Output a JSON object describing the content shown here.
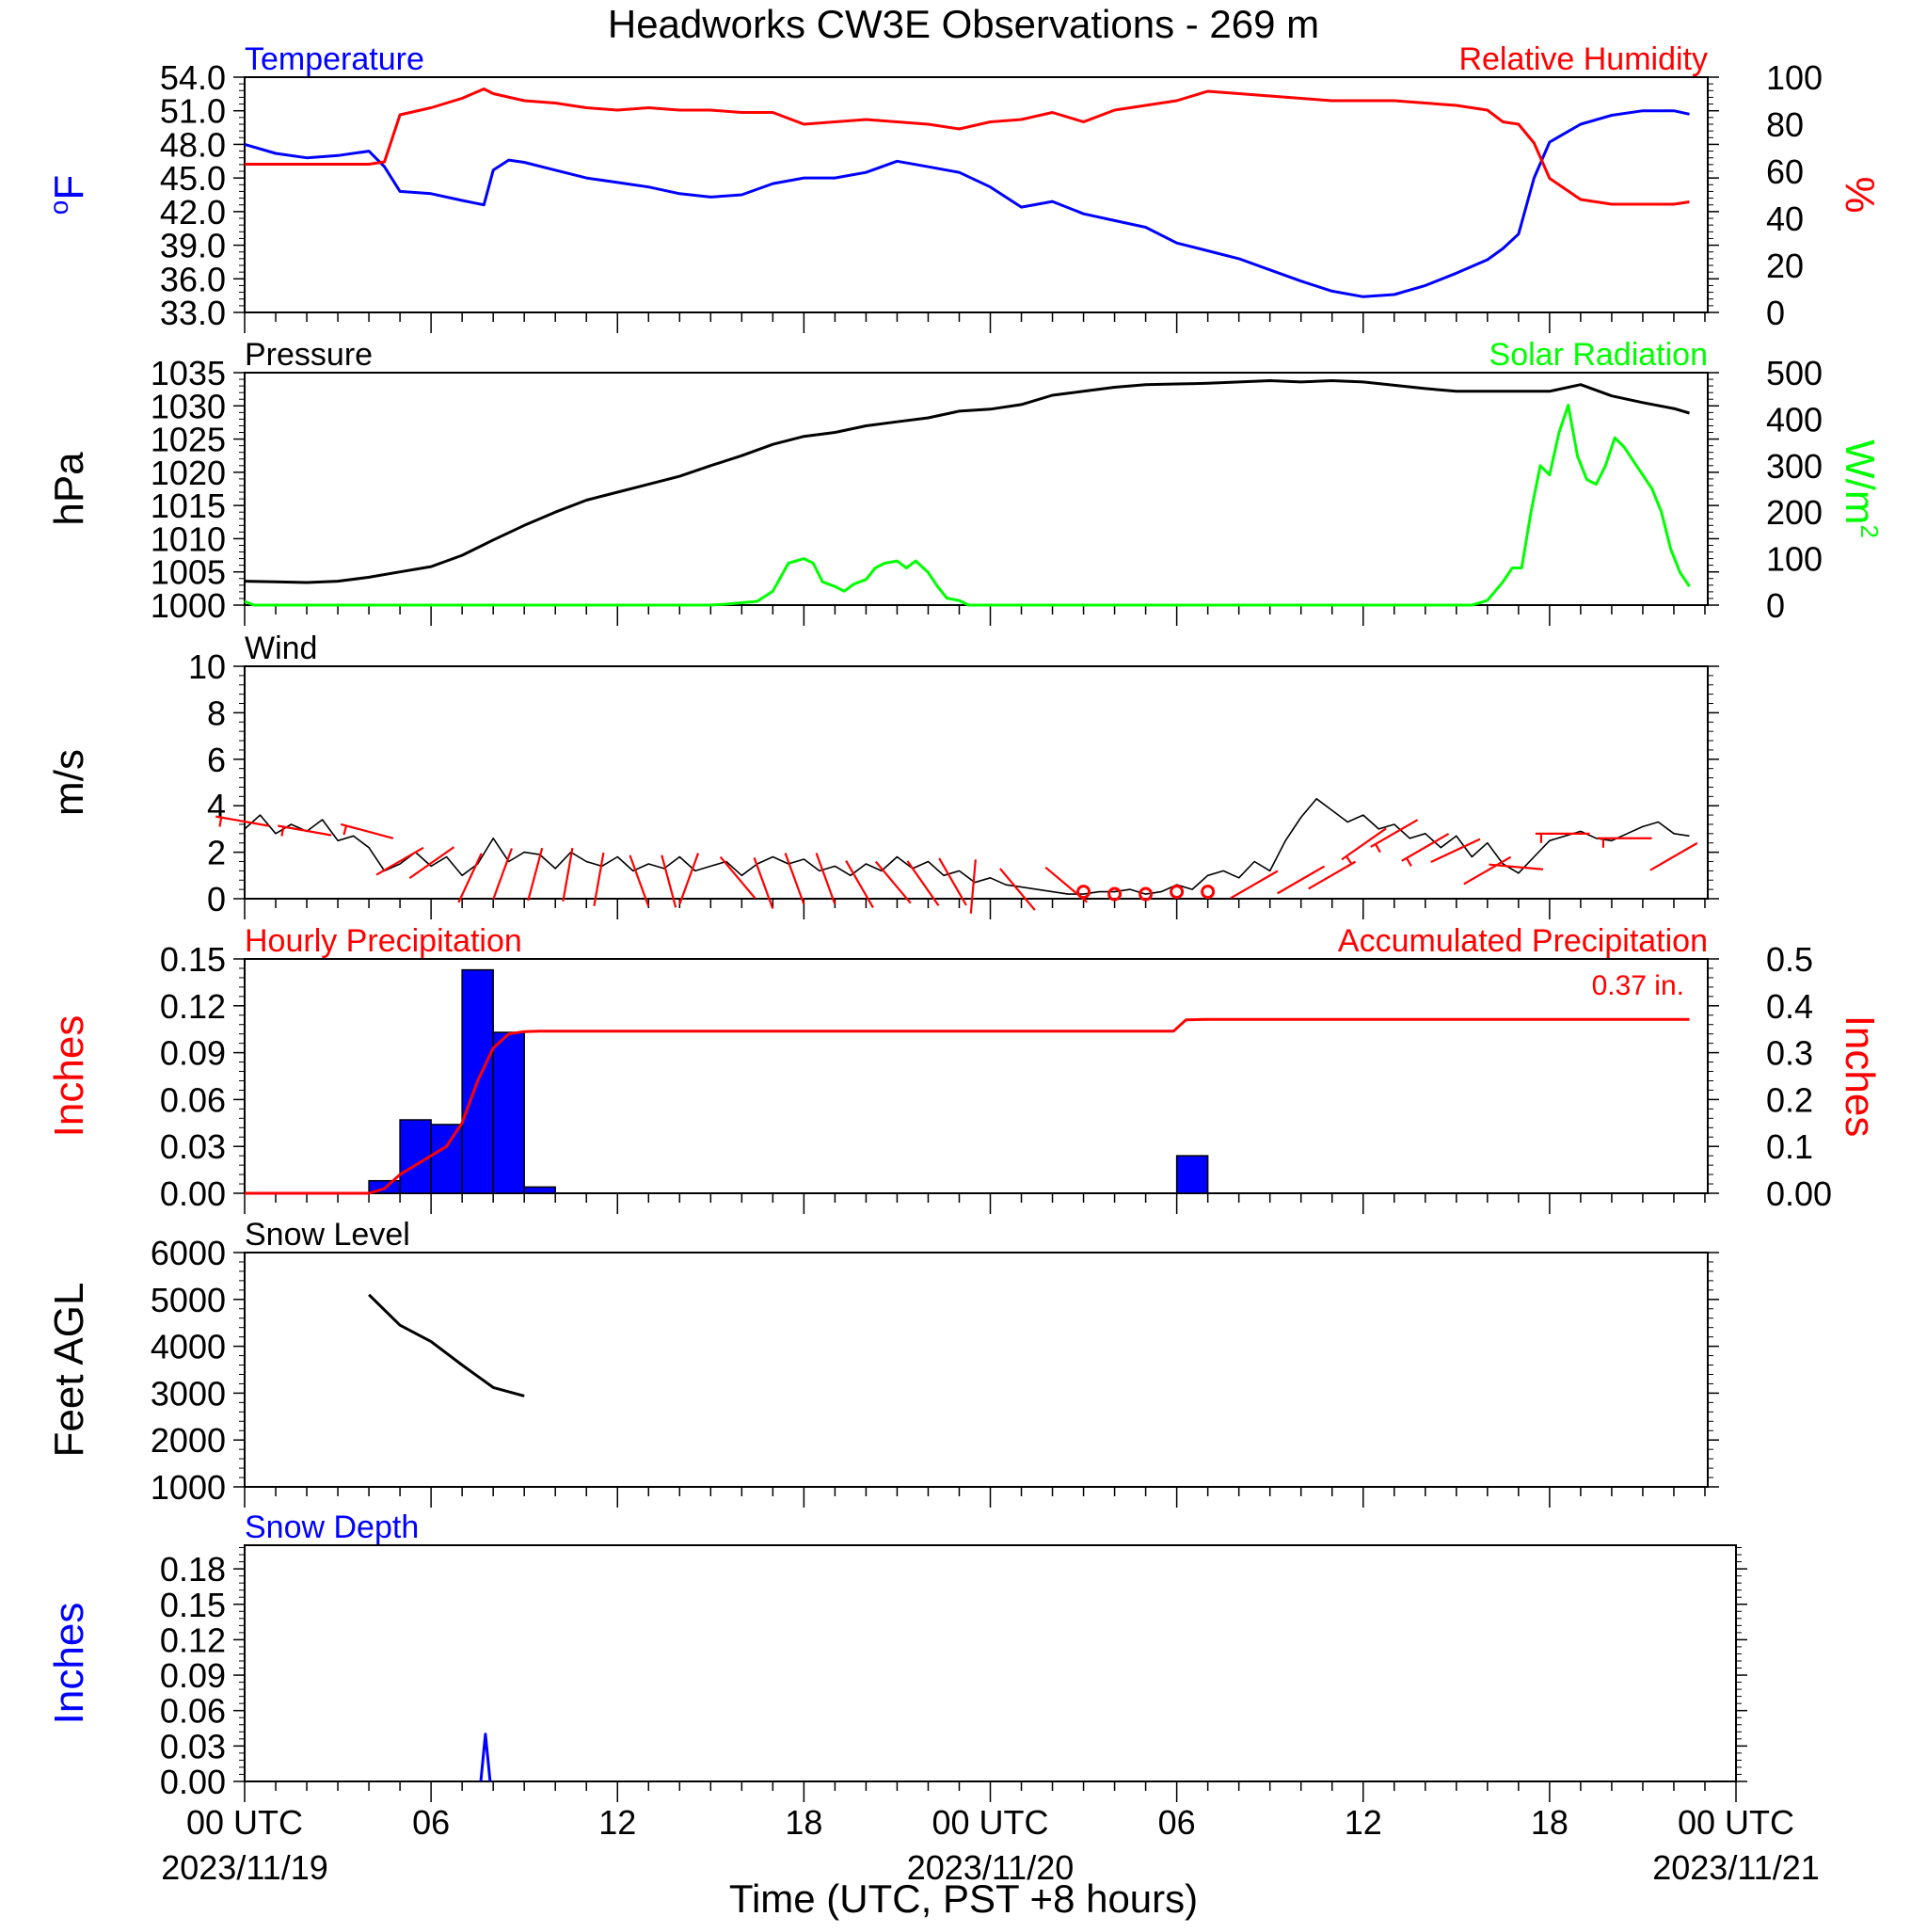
{
  "title": "Headworks CW3E Observations - 269 m",
  "x_axis": {
    "label": "Time (UTC, PST +8 hours)",
    "range_hours": [
      0,
      48
    ],
    "tick_labels": [
      {
        "hour": 0,
        "label": "00 UTC",
        "date": "2023/11/19"
      },
      {
        "hour": 6,
        "label": "06",
        "date": ""
      },
      {
        "hour": 12,
        "label": "12",
        "date": ""
      },
      {
        "hour": 18,
        "label": "18",
        "date": ""
      },
      {
        "hour": 24,
        "label": "00 UTC",
        "date": "2023/11/20"
      },
      {
        "hour": 30,
        "label": "06",
        "date": ""
      },
      {
        "hour": 36,
        "label": "12",
        "date": ""
      },
      {
        "hour": 42,
        "label": "18",
        "date": ""
      },
      {
        "hour": 48,
        "label": "00 UTC",
        "date": "2023/11/21"
      }
    ]
  },
  "colors": {
    "blue": "#0000ff",
    "red": "#ff0000",
    "green": "#00ff00",
    "black": "#000000"
  },
  "chart_data": [
    {
      "type": "line",
      "panel": "temperature-humidity",
      "left_title": "Temperature",
      "right_title": "Relative Humidity",
      "ylabel": "°F",
      "ylabel_right": "%",
      "ylim": [
        33,
        54
      ],
      "yticks": [
        "33.0",
        "36.0",
        "39.0",
        "42.0",
        "45.0",
        "48.0",
        "51.0",
        "54.0"
      ],
      "ylim_right": [
        0,
        100
      ],
      "yticks_right": [
        "0",
        "20",
        "40",
        "60",
        "80",
        "100"
      ],
      "series": [
        {
          "name": "Temperature",
          "color": "#0000ff",
          "axis": "left",
          "x": [
            0,
            1,
            2,
            3,
            4,
            4.5,
            5,
            6,
            7,
            7.7,
            8,
            8.5,
            9,
            10,
            11,
            12,
            13,
            14,
            15,
            16,
            17,
            18,
            19,
            20,
            21,
            22,
            23,
            24,
            25,
            26,
            27,
            28,
            29,
            30,
            31,
            32,
            33,
            34,
            35,
            36,
            37,
            38,
            39,
            40,
            40.5,
            41,
            41.5,
            42,
            43,
            44,
            45,
            46,
            46.5
          ],
          "y": [
            48.0,
            47.2,
            46.8,
            47.0,
            47.4,
            46.0,
            43.8,
            43.6,
            43.0,
            42.6,
            45.7,
            46.6,
            46.4,
            45.7,
            45.0,
            44.6,
            44.2,
            43.6,
            43.3,
            43.5,
            44.5,
            45.0,
            45.0,
            45.5,
            46.5,
            46.0,
            45.5,
            44.2,
            42.4,
            42.9,
            41.8,
            41.2,
            40.6,
            39.2,
            38.5,
            37.8,
            36.8,
            35.8,
            34.9,
            34.4,
            34.6,
            35.4,
            36.5,
            37.7,
            38.7,
            40.0,
            45.0,
            48.2,
            49.8,
            50.6,
            51.0,
            51.0,
            50.7
          ]
        },
        {
          "name": "Relative Humidity",
          "color": "#ff0000",
          "axis": "right",
          "x": [
            0,
            1,
            2,
            3,
            4,
            4.5,
            5,
            6,
            7,
            7.7,
            8,
            9,
            10,
            11,
            12,
            13,
            14,
            15,
            16,
            17,
            18,
            19,
            20,
            21,
            22,
            23,
            24,
            25,
            26,
            27,
            28,
            29,
            30,
            31,
            32,
            33,
            34,
            35,
            36,
            37,
            38,
            39,
            40,
            40.5,
            41,
            41.5,
            42,
            43,
            44,
            45,
            46,
            46.5
          ],
          "y": [
            63,
            63,
            63,
            63,
            63,
            64,
            84,
            87,
            91,
            95,
            93,
            90,
            89,
            87,
            86,
            87,
            86,
            86,
            85,
            85,
            80,
            81,
            82,
            81,
            80,
            78,
            81,
            82,
            85,
            81,
            86,
            88,
            90,
            94,
            93,
            92,
            91,
            90,
            90,
            90,
            89,
            88,
            86,
            81,
            80,
            72,
            57,
            48,
            46,
            46,
            46,
            47
          ]
        }
      ]
    },
    {
      "type": "line",
      "panel": "pressure-solar",
      "left_title": "Pressure",
      "right_title": "Solar Radiation",
      "ylabel": "hPa",
      "ylabel_right": "W/m",
      "ylabel_right_sup": "2",
      "ylim": [
        1000,
        1035
      ],
      "yticks": [
        "1000",
        "1005",
        "1010",
        "1015",
        "1020",
        "1025",
        "1030",
        "1035"
      ],
      "ylim_right": [
        0,
        500
      ],
      "yticks_right": [
        "0",
        "100",
        "200",
        "300",
        "400",
        "500"
      ],
      "series": [
        {
          "name": "Pressure",
          "color": "#000000",
          "axis": "left",
          "x": [
            0,
            1,
            2,
            3,
            4,
            5,
            6,
            7,
            8,
            9,
            10,
            11,
            12,
            13,
            14,
            15,
            16,
            17,
            18,
            19,
            20,
            21,
            22,
            23,
            24,
            25,
            26,
            27,
            28,
            29,
            30,
            31,
            32,
            33,
            34,
            35,
            36,
            37,
            38,
            39,
            40,
            41,
            42,
            43,
            44,
            45,
            46,
            46.5
          ],
          "y": [
            1003.6,
            1003.5,
            1003.4,
            1003.6,
            1004.2,
            1005.0,
            1005.8,
            1007.5,
            1009.8,
            1012.0,
            1014.0,
            1015.8,
            1017.0,
            1018.2,
            1019.4,
            1021.0,
            1022.5,
            1024.2,
            1025.4,
            1026.0,
            1027.0,
            1027.6,
            1028.2,
            1029.2,
            1029.5,
            1030.2,
            1031.6,
            1032.2,
            1032.8,
            1033.2,
            1033.3,
            1033.4,
            1033.6,
            1033.8,
            1033.6,
            1033.8,
            1033.6,
            1033.1,
            1032.6,
            1032.2,
            1032.2,
            1032.2,
            1032.2,
            1033.2,
            1031.5,
            1030.5,
            1029.6,
            1028.9
          ]
        },
        {
          "name": "Solar Radiation",
          "color": "#00ff00",
          "axis": "right",
          "x": [
            0,
            0.3,
            15,
            15.5,
            16,
            16.5,
            17,
            17.5,
            18,
            18.3,
            18.6,
            19,
            19.3,
            19.6,
            20,
            20.3,
            20.6,
            21,
            21.3,
            21.6,
            22,
            22.3,
            22.6,
            23,
            23.3,
            23.6,
            24,
            35,
            38,
            39.5,
            40,
            40.5,
            40.8,
            41.1,
            41.4,
            41.7,
            42,
            42.3,
            42.6,
            42.9,
            43.2,
            43.5,
            43.8,
            44.1,
            44.4,
            44.7,
            45,
            45.3,
            45.6,
            45.9,
            46.2,
            46.5
          ],
          "y": [
            8,
            0,
            0,
            2,
            5,
            8,
            30,
            90,
            100,
            90,
            50,
            40,
            30,
            45,
            55,
            80,
            90,
            95,
            80,
            95,
            70,
            40,
            15,
            10,
            0,
            0,
            0,
            0,
            0,
            0,
            10,
            50,
            80,
            80,
            200,
            300,
            280,
            370,
            430,
            320,
            270,
            260,
            300,
            360,
            340,
            310,
            280,
            250,
            200,
            120,
            70,
            40
          ]
        }
      ]
    },
    {
      "type": "line",
      "panel": "wind",
      "left_title": "Wind",
      "ylabel": "m/s",
      "ylim": [
        0,
        10
      ],
      "yticks": [
        "0",
        "2",
        "4",
        "6",
        "8",
        "10"
      ],
      "series": [
        {
          "name": "Wind",
          "color": "#000000",
          "axis": "left",
          "x": [
            0,
            0.5,
            1,
            1.5,
            2,
            2.5,
            3,
            3.5,
            4,
            4.5,
            5,
            5.5,
            6,
            6.5,
            7,
            7.5,
            8,
            8.5,
            9,
            9.5,
            10,
            10.5,
            11,
            11.5,
            12,
            12.5,
            13,
            13.5,
            14,
            14.5,
            15,
            15.5,
            16,
            16.5,
            17,
            17.5,
            18,
            18.5,
            19,
            19.5,
            20,
            20.5,
            21,
            21.5,
            22,
            22.5,
            23,
            23.5,
            24,
            24.5,
            25,
            25.5,
            26,
            26.5,
            27,
            27.5,
            28,
            28.5,
            29,
            29.5,
            30,
            30.5,
            31,
            31.5,
            32,
            32.5,
            33,
            33.5,
            34,
            34.5,
            35,
            35.5,
            36,
            36.5,
            37,
            37.5,
            38,
            38.5,
            39,
            39.5,
            40,
            40.5,
            41,
            41.5,
            42,
            42.5,
            43,
            43.5,
            44,
            44.5,
            45,
            45.5,
            46,
            46.5
          ],
          "y": [
            3.0,
            3.6,
            2.8,
            3.2,
            2.9,
            3.4,
            2.5,
            2.7,
            2.2,
            1.2,
            1.5,
            2.0,
            1.4,
            1.8,
            1.0,
            1.5,
            2.6,
            1.6,
            2.0,
            1.9,
            1.3,
            2.0,
            1.6,
            1.4,
            1.8,
            1.2,
            1.5,
            1.3,
            1.8,
            1.2,
            1.4,
            1.6,
            1.0,
            1.5,
            1.8,
            1.5,
            1.7,
            1.2,
            1.4,
            1.0,
            1.5,
            1.2,
            1.8,
            1.3,
            1.6,
            1.0,
            1.2,
            0.7,
            0.9,
            0.6,
            0.5,
            0.4,
            0.3,
            0.2,
            0.2,
            0.3,
            0.3,
            0.4,
            0.2,
            0.3,
            0.6,
            0.4,
            1.0,
            1.2,
            0.9,
            1.6,
            1.2,
            2.5,
            3.5,
            4.3,
            3.8,
            3.3,
            3.6,
            3.0,
            3.2,
            2.6,
            2.8,
            2.2,
            2.7,
            1.8,
            2.4,
            1.5,
            1.1,
            1.8,
            2.5,
            2.7,
            2.9,
            2.6,
            2.5,
            2.8,
            3.1,
            3.3,
            2.8,
            2.7
          ]
        }
      ]
    },
    {
      "type": "bar",
      "panel": "precipitation",
      "left_title": "Hourly Precipitation",
      "right_title": "Accumulated Precipitation",
      "annotation": "0.37 in.",
      "ylabel": "Inches",
      "ylabel_right": "Inches",
      "ylim": [
        0,
        0.15
      ],
      "yticks": [
        "0.00",
        "0.03",
        "0.06",
        "0.09",
        "0.12",
        "0.15"
      ],
      "ylim_right": [
        0,
        0.5
      ],
      "yticks_right": [
        "0.00",
        "0.1",
        "0.2",
        "0.3",
        "0.4",
        "0.5"
      ],
      "bars": {
        "name": "Hourly Precipitation",
        "color": "#0000ff",
        "hour_start": [
          4,
          5,
          6,
          7,
          8,
          9,
          30
        ],
        "values": [
          0.008,
          0.047,
          0.044,
          0.143,
          0.103,
          0.004,
          0.024
        ]
      },
      "series": [
        {
          "name": "Accumulated Precipitation",
          "color": "#ff0000",
          "axis": "right",
          "x": [
            0,
            4,
            4.5,
            5,
            5.5,
            6,
            6.5,
            7,
            7.5,
            8,
            8.5,
            9,
            9.5,
            10,
            29.9,
            30.3,
            31,
            46.5
          ],
          "y": [
            0,
            0,
            0.01,
            0.04,
            0.06,
            0.08,
            0.1,
            0.15,
            0.24,
            0.31,
            0.34,
            0.345,
            0.346,
            0.346,
            0.346,
            0.37,
            0.371,
            0.371
          ]
        }
      ]
    },
    {
      "type": "line",
      "panel": "snow-level",
      "left_title": "Snow Level",
      "ylabel": "Feet AGL",
      "ylim": [
        1000,
        6000
      ],
      "yticks": [
        "1000",
        "2000",
        "3000",
        "4000",
        "5000",
        "6000"
      ],
      "series": [
        {
          "name": "Snow Level",
          "color": "#000000",
          "axis": "left",
          "x": [
            4,
            5,
            6,
            7,
            8,
            9
          ],
          "y": [
            5100,
            4450,
            4100,
            3600,
            3120,
            2940
          ]
        }
      ]
    },
    {
      "type": "line",
      "panel": "snow-depth",
      "left_title": "Snow Depth",
      "ylabel": "Inches",
      "ylim": [
        0,
        0.2
      ],
      "yticks": [
        "0.00",
        "0.03",
        "0.06",
        "0.09",
        "0.12",
        "0.15",
        "0.18"
      ],
      "series": [
        {
          "name": "Snow Depth",
          "color": "#0000ff",
          "axis": "left",
          "x": [
            7.6,
            7.75,
            7.9
          ],
          "y": [
            0,
            0.04,
            0
          ]
        }
      ]
    }
  ],
  "wind_barbs": {
    "color": "#ff0000",
    "barbs": [
      {
        "hour": 0.5,
        "speed": 3.2,
        "dir": 260
      },
      {
        "hour": 2.5,
        "speed": 2.8,
        "dir": 260
      },
      {
        "hour": 4.5,
        "speed": 2.7,
        "dir": 255
      },
      {
        "hour": 5.5,
        "speed": 2.0,
        "dir": 300
      },
      {
        "hour": 6.5,
        "speed": 2.0,
        "dir": 305
      },
      {
        "hour": 7.5,
        "speed": 1.6,
        "dir": 335
      },
      {
        "hour": 8.5,
        "speed": 1.8,
        "dir": 340
      },
      {
        "hour": 9.5,
        "speed": 1.8,
        "dir": 345
      },
      {
        "hour": 10.5,
        "speed": 1.8,
        "dir": 350
      },
      {
        "hour": 11.5,
        "speed": 1.6,
        "dir": 350
      },
      {
        "hour": 12.5,
        "speed": 1.5,
        "dir": 20
      },
      {
        "hour": 13.5,
        "speed": 1.5,
        "dir": 15
      },
      {
        "hour": 14.5,
        "speed": 1.6,
        "dir": 340
      },
      {
        "hour": 15.5,
        "speed": 1.5,
        "dir": 40
      },
      {
        "hour": 16.5,
        "speed": 1.4,
        "dir": 20
      },
      {
        "hour": 17.5,
        "speed": 1.6,
        "dir": 20
      },
      {
        "hour": 18.5,
        "speed": 1.6,
        "dir": 20
      },
      {
        "hour": 19.5,
        "speed": 1.3,
        "dir": 30
      },
      {
        "hour": 20.5,
        "speed": 1.3,
        "dir": 40
      },
      {
        "hour": 21.5,
        "speed": 1.3,
        "dir": 35
      },
      {
        "hour": 22.5,
        "speed": 1.4,
        "dir": 30
      },
      {
        "hour": 23.5,
        "speed": 1.3,
        "dir": 355
      },
      {
        "hour": 24.5,
        "speed": 1.0,
        "dir": 40
      },
      {
        "hour": 26,
        "speed": 1.1,
        "dir": 50
      },
      {
        "hour": 27,
        "speed": 0.3,
        "dir": 0
      },
      {
        "hour": 28,
        "speed": 0.2,
        "dir": 0
      },
      {
        "hour": 29,
        "speed": 0.2,
        "dir": 0
      },
      {
        "hour": 30,
        "speed": 0.3,
        "dir": 0
      },
      {
        "hour": 31,
        "speed": 0.3,
        "dir": 0
      },
      {
        "hour": 33,
        "speed": 1.0,
        "dir": 300
      },
      {
        "hour": 34.5,
        "speed": 1.2,
        "dir": 300
      },
      {
        "hour": 35.5,
        "speed": 1.4,
        "dir": 300
      },
      {
        "hour": 36.5,
        "speed": 2.8,
        "dir": 305
      },
      {
        "hour": 37.5,
        "speed": 3.2,
        "dir": 300
      },
      {
        "hour": 38.5,
        "speed": 2.6,
        "dir": 300
      },
      {
        "hour": 39.5,
        "speed": 2.4,
        "dir": 295
      },
      {
        "hour": 40.5,
        "speed": 1.6,
        "dir": 300
      },
      {
        "hour": 41.5,
        "speed": 1.3,
        "dir": 265
      },
      {
        "hour": 43,
        "speed": 2.8,
        "dir": 270
      },
      {
        "hour": 45,
        "speed": 2.6,
        "dir": 270
      },
      {
        "hour": 46.5,
        "speed": 2.2,
        "dir": 300
      }
    ]
  }
}
